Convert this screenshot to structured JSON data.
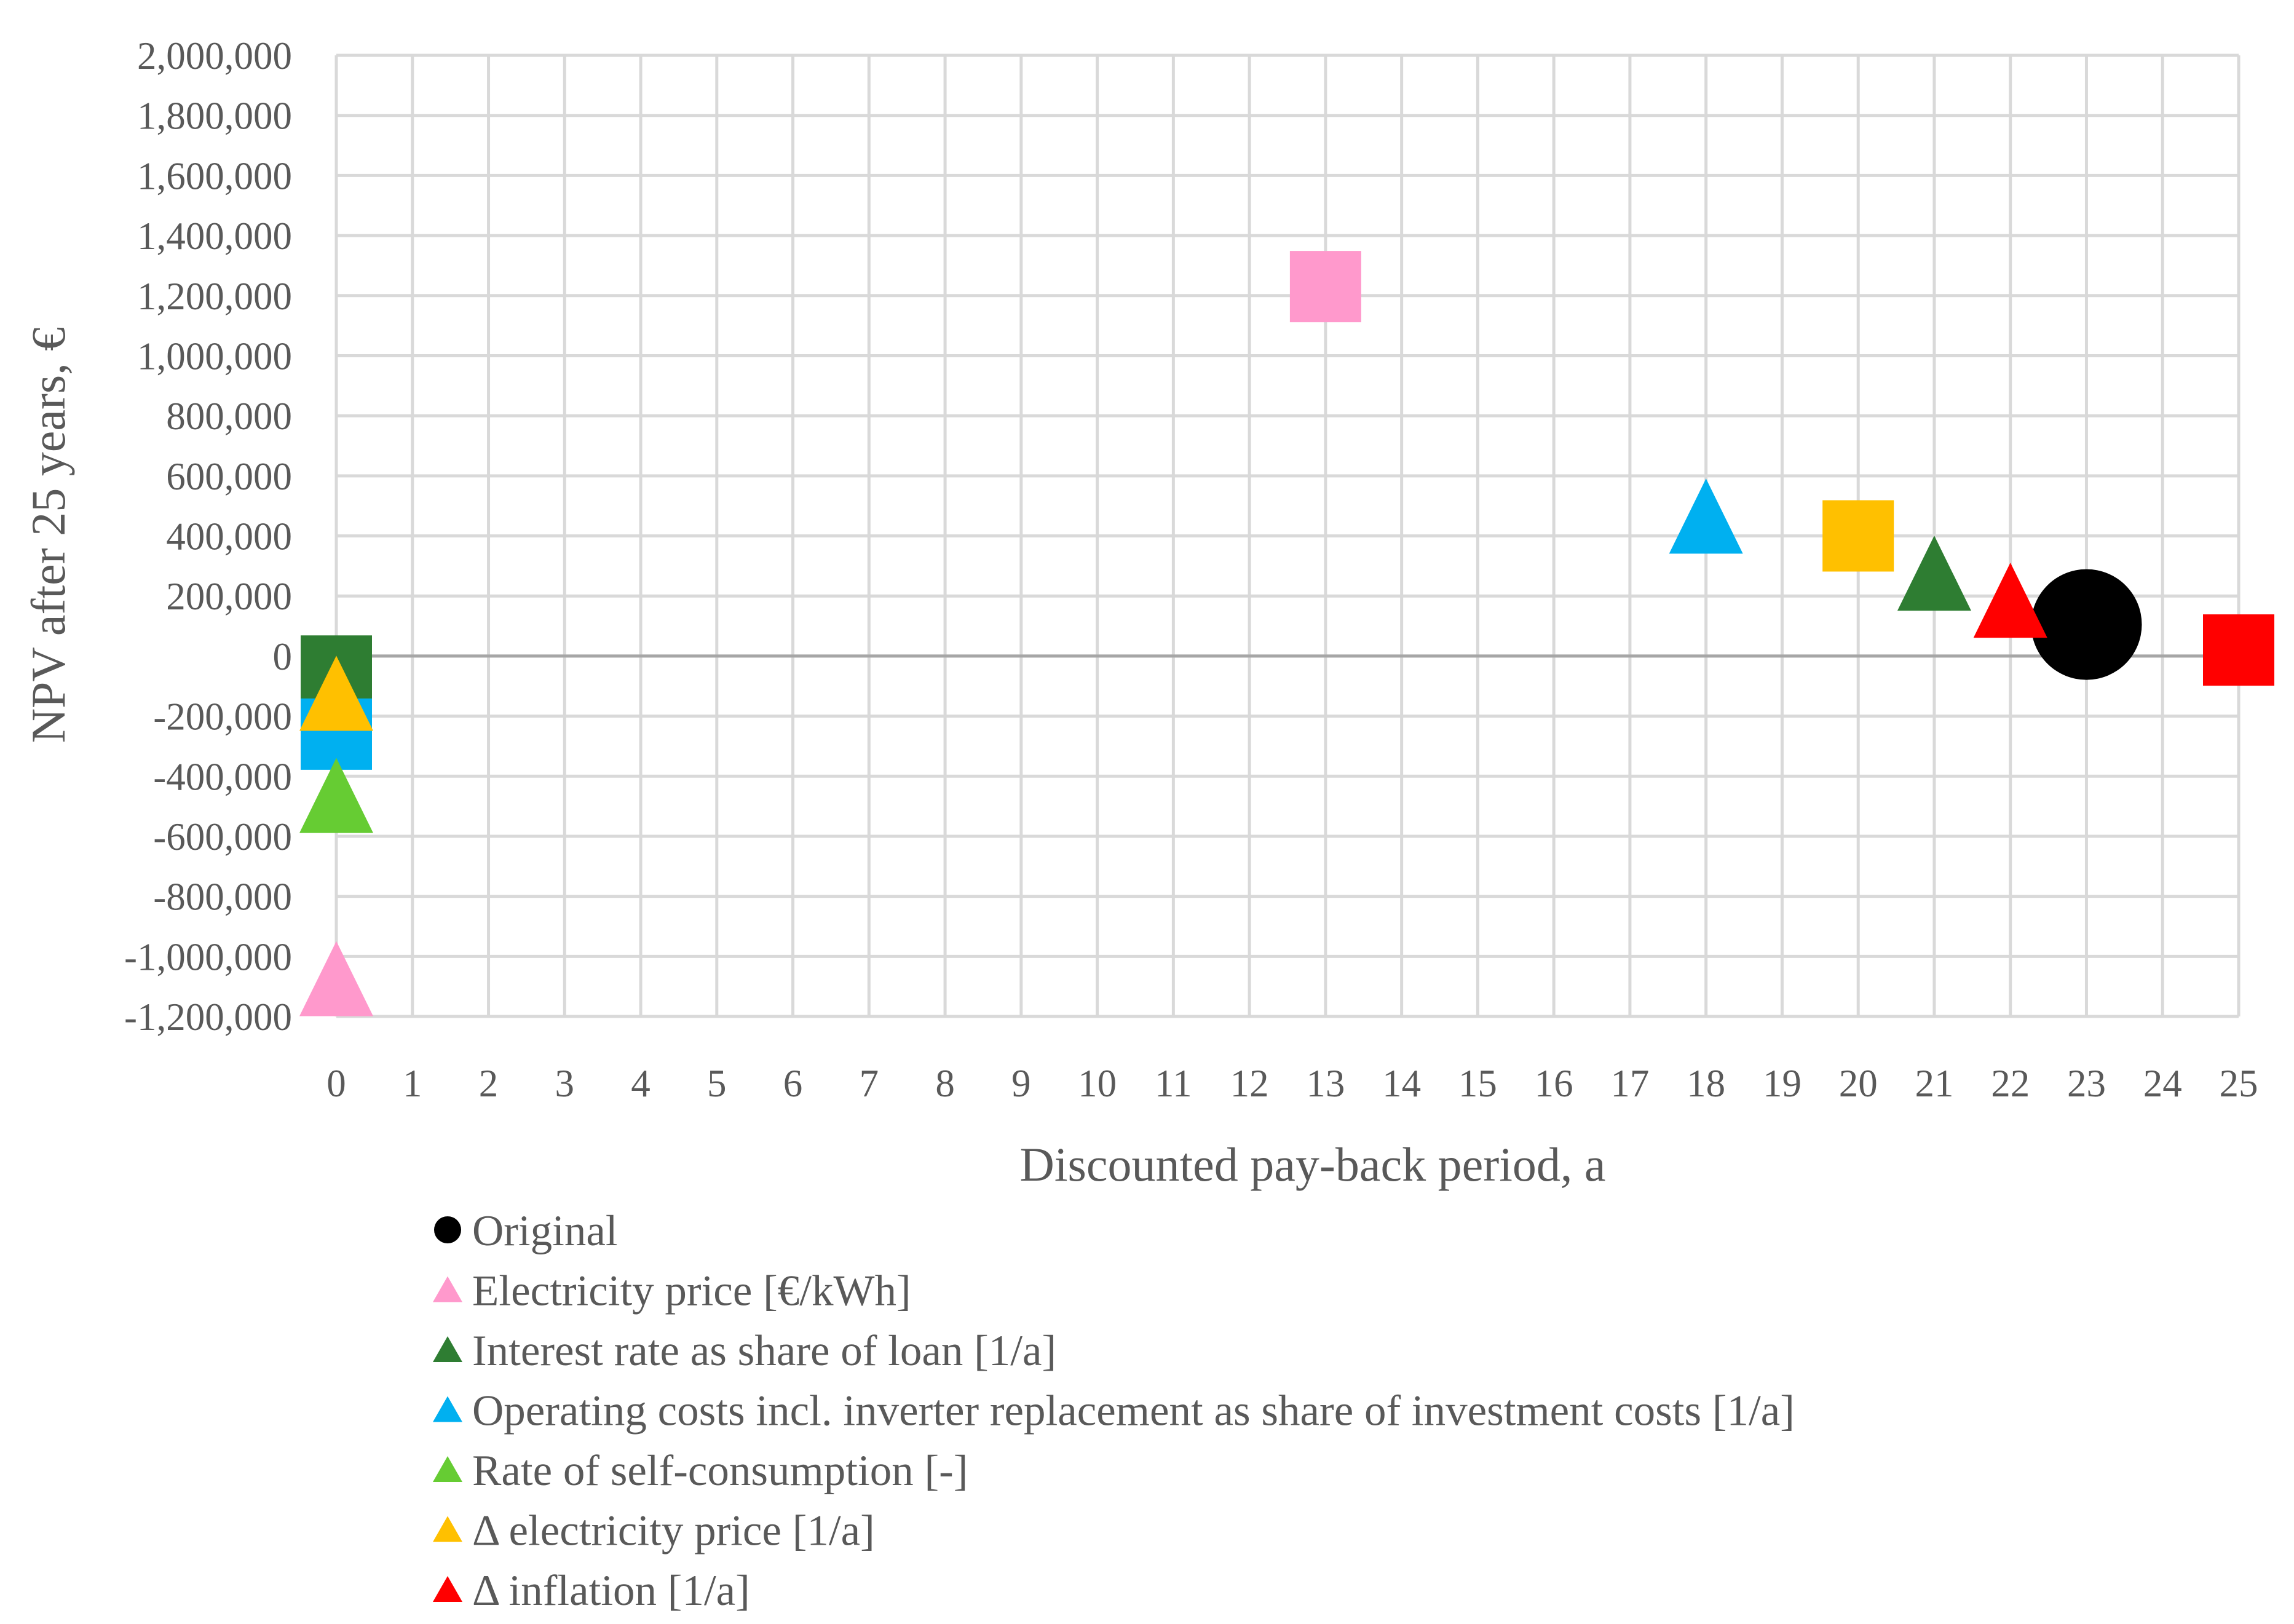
{
  "chart_data": {
    "type": "scatter",
    "xlabel": "Discounted pay-back period, a",
    "ylabel": "NPV after 25 years, €",
    "xlim": [
      0,
      25
    ],
    "ylim": [
      -1200000,
      2000000
    ],
    "x_ticks": [
      "0",
      "1",
      "2",
      "3",
      "4",
      "5",
      "6",
      "7",
      "8",
      "9",
      "10",
      "11",
      "12",
      "13",
      "14",
      "15",
      "16",
      "17",
      "18",
      "19",
      "20",
      "21",
      "22",
      "23",
      "24",
      "25"
    ],
    "y_ticks": [
      "2,000,000",
      "1,800,000",
      "1,600,000",
      "1,400,000",
      "1,200,000",
      "1,000,000",
      "800,000",
      "600,000",
      "400,000",
      "200,000",
      "0",
      "-200,000",
      "-400,000",
      "-600,000",
      "-800,000",
      "-1,000,000",
      "-1,200,000"
    ],
    "grid": true,
    "legend_position": "bottom",
    "legend": [
      {
        "label": "Original",
        "shape": "circle",
        "color": "#000000"
      },
      {
        "label": "Electricity price [€/kWh]",
        "shape": "triangle",
        "color": "#FF99CC"
      },
      {
        "label": "Interest rate as share of loan [1/a]",
        "shape": "triangle",
        "color": "#2E7D32"
      },
      {
        "label": "Operating costs incl. inverter replacement as share of investment costs [1/a]",
        "shape": "triangle",
        "color": "#00B0F0"
      },
      {
        "label": "Rate of self-consumption [-]",
        "shape": "triangle",
        "color": "#66CC33"
      },
      {
        "label": "Δ electricity price [1/a]",
        "shape": "triangle",
        "color": "#FFC000"
      },
      {
        "label": "Δ inflation [1/a]",
        "shape": "triangle",
        "color": "#FF0000"
      }
    ],
    "points": [
      {
        "series": "Original",
        "shape": "circle",
        "color": "#000000",
        "x": 23,
        "y": 105000
      },
      {
        "series": "Electricity price [€/kWh]",
        "shape": "square",
        "color": "#FF99CC",
        "x": 13,
        "y": 1230000
      },
      {
        "series": "Electricity price [€/kWh]",
        "shape": "triangle",
        "color": "#FF99CC",
        "x": 0,
        "y": -1090000
      },
      {
        "series": "Interest rate as share of loan [1/a]",
        "shape": "square",
        "color": "#2E7D32",
        "x": 0,
        "y": -50000
      },
      {
        "series": "Interest rate as share of loan [1/a]",
        "shape": "triangle",
        "color": "#2E7D32",
        "x": 21,
        "y": 260000
      },
      {
        "series": "Operating costs incl. inverter replacement as share of investment costs [1/a]",
        "shape": "square",
        "color": "#00B0F0",
        "x": 0,
        "y": -260000
      },
      {
        "series": "Operating costs incl. inverter replacement as share of investment costs [1/a]",
        "shape": "triangle",
        "color": "#00B0F0",
        "x": 18,
        "y": 450000
      },
      {
        "series": "Rate of self-consumption [-]",
        "shape": "triangle",
        "color": "#66CC33",
        "x": 0,
        "y": -480000
      },
      {
        "series": "Δ electricity price [1/a]",
        "shape": "square",
        "color": "#FFC000",
        "x": 20,
        "y": 400000
      },
      {
        "series": "Δ electricity price [1/a]",
        "shape": "triangle",
        "color": "#FFC000",
        "x": 0,
        "y": -140000
      },
      {
        "series": "Δ inflation [1/a]",
        "shape": "triangle",
        "color": "#FF0000",
        "x": 22,
        "y": 170000
      },
      {
        "series": "Δ inflation [1/a]",
        "shape": "square",
        "color": "#FF0000",
        "x": 25,
        "y": 20000
      }
    ]
  }
}
